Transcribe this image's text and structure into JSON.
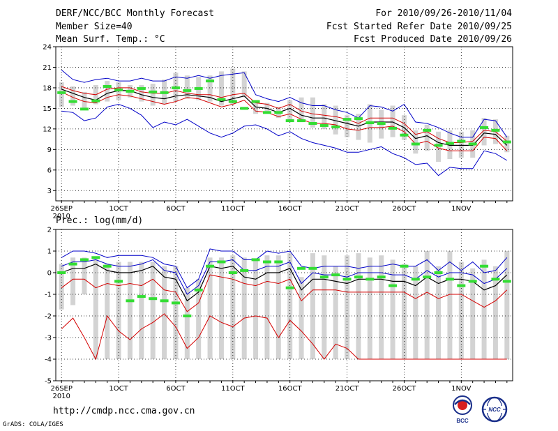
{
  "header": {
    "title": "DERF/NCC/BCC Monthly Forecast",
    "member_size": "Member Size=40",
    "variable": "Mean Surf. Temp.: °C",
    "forecast_range": "For 2010/09/26-2010/11/04",
    "fcst_started": "Fcst Started Refer Date 2010/09/25",
    "fcst_produced": "Fcst Produced Date 2010/09/26"
  },
  "footer": {
    "url": "http://cmdp.ncc.cma.gov.cn",
    "credit": "GrADS: COLA/IGES",
    "logo_bcc": "BCC",
    "logo_ncc": "NCC"
  },
  "colors": {
    "ensemble_range": "#d3d3d3",
    "mean": "#000000",
    "envelope_inner": "#d40000",
    "envelope_outer": "#0000c8",
    "highlight": "#33dd33",
    "grid": "#000000"
  },
  "chart_data": [
    {
      "type": "line",
      "title": "Mean Surf. Temp.: °C",
      "ylabel": "Mean Surf. Temp. (°C)",
      "ylim": [
        1.5,
        24
      ],
      "yticks": [
        3,
        6,
        9,
        12,
        15,
        18,
        21,
        24
      ],
      "x": "days 1-40 (2010/09/26 - 2010/11/04)",
      "xtick_days": [
        1,
        6,
        11,
        16,
        21,
        26,
        31,
        36
      ],
      "xtick_labels": [
        "26SEP",
        "1OCT",
        "6OCT",
        "11OCT",
        "16OCT",
        "21OCT",
        "26OCT",
        "1NOV"
      ],
      "x_year": "2010",
      "series": [
        {
          "name": "ensemble mean",
          "values": [
            17.8,
            17.2,
            16.6,
            16.2,
            17.2,
            17.6,
            17.6,
            17.0,
            16.6,
            16.4,
            16.8,
            17.0,
            16.8,
            16.6,
            16.0,
            16.4,
            16.8,
            15.2,
            15.0,
            14.4,
            15.0,
            14.0,
            13.6,
            13.6,
            13.2,
            12.8,
            12.4,
            13.0,
            13.0,
            13.0,
            12.2,
            10.6,
            11.0,
            10.0,
            9.6,
            9.6,
            9.6,
            11.4,
            11.2,
            9.6
          ]
        },
        {
          "name": "upper inner",
          "values": [
            18.2,
            17.6,
            17.2,
            17.0,
            17.8,
            18.0,
            18.0,
            17.4,
            17.2,
            17.2,
            17.6,
            17.2,
            17.0,
            17.0,
            16.6,
            17.0,
            17.2,
            15.8,
            15.6,
            15.0,
            15.6,
            14.6,
            14.2,
            14.0,
            13.8,
            13.4,
            12.8,
            13.6,
            13.6,
            13.6,
            12.8,
            11.2,
            11.6,
            10.6,
            10.0,
            10.0,
            10.2,
            11.8,
            11.6,
            10.2
          ]
        },
        {
          "name": "lower inner",
          "values": [
            17.4,
            16.6,
            16.0,
            15.8,
            16.6,
            17.0,
            16.8,
            16.4,
            16.0,
            15.6,
            16.0,
            16.6,
            16.4,
            15.8,
            15.2,
            15.6,
            16.2,
            14.6,
            14.4,
            13.8,
            14.2,
            13.4,
            12.8,
            12.8,
            12.6,
            12.0,
            11.8,
            12.2,
            12.2,
            12.4,
            11.6,
            9.8,
            10.2,
            9.2,
            8.8,
            8.8,
            8.8,
            10.8,
            10.6,
            8.8
          ]
        },
        {
          "name": "upper outer",
          "values": [
            20.6,
            19.2,
            18.8,
            19.2,
            19.4,
            19.0,
            19.0,
            19.4,
            19.0,
            19.0,
            19.6,
            19.4,
            19.8,
            19.4,
            19.8,
            20.0,
            20.2,
            17.0,
            16.4,
            16.0,
            16.6,
            15.8,
            15.4,
            15.4,
            14.8,
            14.4,
            13.6,
            15.4,
            15.2,
            14.6,
            15.6,
            13.0,
            12.8,
            12.2,
            11.4,
            10.8,
            10.8,
            13.4,
            13.2,
            10.8
          ]
        },
        {
          "name": "lower outer",
          "values": [
            14.6,
            14.4,
            13.2,
            13.6,
            15.2,
            15.6,
            15.0,
            14.0,
            12.2,
            13.0,
            12.6,
            13.4,
            12.4,
            11.4,
            10.8,
            11.4,
            12.4,
            12.6,
            12.0,
            11.0,
            11.6,
            10.6,
            10.0,
            9.6,
            9.2,
            8.6,
            8.6,
            9.0,
            9.4,
            8.4,
            7.8,
            6.8,
            7.0,
            5.2,
            6.4,
            6.2,
            6.2,
            8.8,
            8.4,
            7.4
          ]
        },
        {
          "name": "ensemble min",
          "values": [
            15.2,
            15.4,
            14.8,
            15.6,
            16.0,
            16.2,
            16.6,
            16.0,
            15.4,
            15.6,
            16.0,
            16.4,
            16.2,
            16.0,
            15.4,
            15.6,
            16.6,
            14.2,
            14.6,
            13.6,
            13.2,
            13.0,
            12.2,
            12.0,
            11.2,
            10.8,
            10.4,
            10.0,
            10.6,
            10.8,
            10.4,
            8.4,
            8.8,
            7.2,
            7.6,
            7.8,
            7.8,
            9.6,
            9.8,
            8.6
          ]
        },
        {
          "name": "ensemble max",
          "values": [
            18.8,
            18.2,
            17.4,
            18.4,
            19.0,
            18.8,
            18.4,
            18.4,
            18.6,
            19.2,
            20.2,
            19.8,
            19.6,
            19.8,
            20.4,
            20.8,
            20.4,
            16.2,
            15.8,
            15.2,
            16.2,
            16.6,
            16.6,
            15.6,
            15.4,
            14.0,
            14.2,
            15.6,
            14.8,
            15.4,
            14.0,
            11.8,
            12.6,
            11.6,
            11.8,
            11.6,
            11.8,
            13.6,
            13.4,
            11.0
          ]
        },
        {
          "name": "highlighted member",
          "values": [
            17.3,
            16.0,
            14.9,
            16.1,
            18.2,
            17.7,
            17.5,
            17.9,
            17.4,
            17.3,
            18.0,
            17.6,
            17.9,
            19.0,
            16.3,
            16.0,
            15.0,
            16.0,
            14.4,
            14.4,
            13.2,
            13.2,
            12.8,
            12.5,
            12.3,
            13.4,
            13.5,
            12.9,
            12.8,
            12.1,
            11.1,
            9.8,
            11.8,
            9.6,
            9.9,
            10.2,
            9.8,
            12.2,
            11.8,
            10.1
          ]
        }
      ]
    },
    {
      "type": "line",
      "title": "Prec.: log(mm/d)",
      "ylabel": "Prec. log(mm/d)",
      "ylim": [
        -5,
        2
      ],
      "yticks": [
        -5,
        -4,
        -3,
        -2,
        -1,
        0,
        1,
        2
      ],
      "x": "days 1-40 (2010/09/26 - 2010/11/04)",
      "xtick_days": [
        1,
        6,
        11,
        16,
        21,
        26,
        31,
        36
      ],
      "xtick_labels": [
        "26SEP",
        "1OCT",
        "6OCT",
        "11OCT",
        "16OCT",
        "21OCT",
        "26OCT",
        "1NOV"
      ],
      "x_year": "2010",
      "series": [
        {
          "name": "ensemble mean",
          "values": [
            0.0,
            0.2,
            0.2,
            0.4,
            0.1,
            0.0,
            0.0,
            0.1,
            0.3,
            -0.2,
            -0.3,
            -1.3,
            -0.9,
            0.3,
            0.2,
            0.3,
            -0.2,
            -0.3,
            0.0,
            0.0,
            0.2,
            -0.8,
            -0.3,
            -0.3,
            -0.4,
            -0.5,
            -0.3,
            -0.3,
            -0.3,
            -0.4,
            -0.4,
            -0.6,
            -0.2,
            -0.5,
            -0.3,
            -0.3,
            -0.4,
            -0.8,
            -0.6,
            -0.1
          ]
        },
        {
          "name": "upper inner",
          "values": [
            0.3,
            0.5,
            0.5,
            0.6,
            0.4,
            0.3,
            0.3,
            0.4,
            0.6,
            0.1,
            0.0,
            -1.0,
            -0.6,
            0.5,
            0.5,
            0.6,
            0.1,
            0.1,
            0.3,
            0.3,
            0.5,
            -0.5,
            0.0,
            -0.1,
            -0.1,
            -0.2,
            0.0,
            0.0,
            0.0,
            -0.1,
            -0.1,
            -0.3,
            0.1,
            -0.2,
            0.0,
            0.0,
            -0.1,
            -0.5,
            -0.3,
            0.2
          ]
        },
        {
          "name": "lower inner",
          "values": [
            -0.7,
            -0.3,
            -0.3,
            -0.7,
            -0.5,
            -0.6,
            -0.5,
            -0.6,
            -0.3,
            -0.8,
            -0.9,
            -1.8,
            -1.4,
            -0.1,
            -0.2,
            -0.3,
            -0.5,
            -0.6,
            -0.4,
            -0.5,
            -0.3,
            -1.3,
            -0.8,
            -0.8,
            -0.8,
            -0.9,
            -0.9,
            -0.9,
            -0.9,
            -0.9,
            -0.9,
            -1.2,
            -0.9,
            -1.2,
            -1.0,
            -1.0,
            -1.3,
            -1.6,
            -1.3,
            -0.8
          ]
        },
        {
          "name": "upper outer",
          "values": [
            0.7,
            1.0,
            1.0,
            0.9,
            0.7,
            0.8,
            0.8,
            0.8,
            0.7,
            0.4,
            0.3,
            -0.7,
            -0.3,
            1.1,
            1.0,
            1.0,
            0.6,
            0.6,
            1.0,
            0.9,
            1.0,
            0.3,
            0.2,
            0.3,
            0.3,
            0.3,
            0.2,
            0.3,
            0.3,
            0.4,
            0.3,
            0.3,
            0.6,
            0.1,
            0.5,
            0.1,
            0.5,
            0.0,
            0.1,
            0.7
          ]
        },
        {
          "name": "lower outer",
          "values": [
            -2.6,
            -2.1,
            -3.0,
            -4.0,
            -2.0,
            -2.7,
            -3.1,
            -2.6,
            -2.3,
            -1.9,
            -2.5,
            -3.5,
            -3.0,
            -2.0,
            -2.3,
            -2.5,
            -2.1,
            -2.0,
            -2.1,
            -3.0,
            -2.2,
            -2.7,
            -3.3,
            -4.0,
            -3.3,
            -3.5,
            -4.0,
            -4.0,
            -4.0,
            -4.0,
            -4.0,
            -4.0,
            -4.0,
            -4.0,
            -4.0,
            -4.0,
            -4.0,
            -4.0,
            -4.0,
            -4.0
          ]
        },
        {
          "name": "ensemble min",
          "values": [
            -1.7,
            -1.5,
            -1.0,
            -4.0,
            -4.0,
            -4.0,
            -4.0,
            -4.0,
            -4.0,
            -4.0,
            -4.0,
            -4.0,
            -4.0,
            -4.0,
            -4.0,
            -4.0,
            -4.0,
            -4.0,
            -4.0,
            -4.0,
            -4.0,
            -4.0,
            -4.0,
            -4.0,
            -4.0,
            -4.0,
            -4.0,
            -4.0,
            -4.0,
            -4.0,
            -4.0,
            -4.0,
            -4.0,
            -4.0,
            -4.0,
            -4.0,
            -4.0,
            -4.0,
            -4.0,
            -4.0
          ]
        },
        {
          "name": "ensemble max",
          "values": [
            0.4,
            0.7,
            0.7,
            0.6,
            0.4,
            0.5,
            0.5,
            0.5,
            0.5,
            0.3,
            0.3,
            -0.7,
            -0.3,
            0.7,
            0.7,
            0.8,
            0.7,
            0.6,
            0.8,
            0.8,
            0.9,
            -0.2,
            0.9,
            0.8,
            0.3,
            0.8,
            0.9,
            0.7,
            0.8,
            0.6,
            0.4,
            0.3,
            1.0,
            0.3,
            1.0,
            0.5,
            0.2,
            0.6,
            0.3,
            1.0
          ]
        },
        {
          "name": "highlighted member",
          "values": [
            0.0,
            0.4,
            0.6,
            0.7,
            0.3,
            -0.4,
            -1.3,
            -1.1,
            -1.2,
            -1.3,
            -1.4,
            -2.0,
            -0.8,
            0.3,
            0.5,
            0.0,
            0.1,
            0.6,
            0.5,
            0.5,
            -0.7,
            0.2,
            0.2,
            -0.2,
            -0.1,
            -0.3,
            -0.2,
            -0.3,
            -0.2,
            -0.6,
            0.3,
            -0.3,
            -0.2,
            0.0,
            -0.3,
            -0.6,
            -0.4,
            0.3,
            -0.3,
            -0.4
          ]
        }
      ]
    }
  ]
}
